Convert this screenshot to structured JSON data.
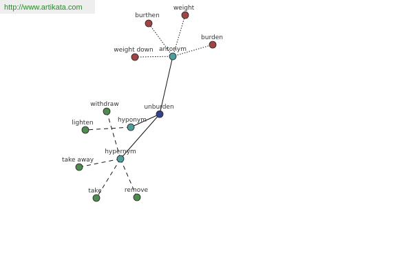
{
  "header": {
    "url": "http://www.artikata.com"
  },
  "nodes": [
    {
      "label": "unburden"
    },
    {
      "label": "antonym"
    },
    {
      "label": "burthen"
    },
    {
      "label": "weight"
    },
    {
      "label": "burden"
    },
    {
      "label": "weight down"
    },
    {
      "label": "hyponym"
    },
    {
      "label": "withdraw"
    },
    {
      "label": "lighten"
    },
    {
      "label": "hypernym"
    },
    {
      "label": "take away"
    },
    {
      "label": "take"
    },
    {
      "label": "remove"
    }
  ]
}
